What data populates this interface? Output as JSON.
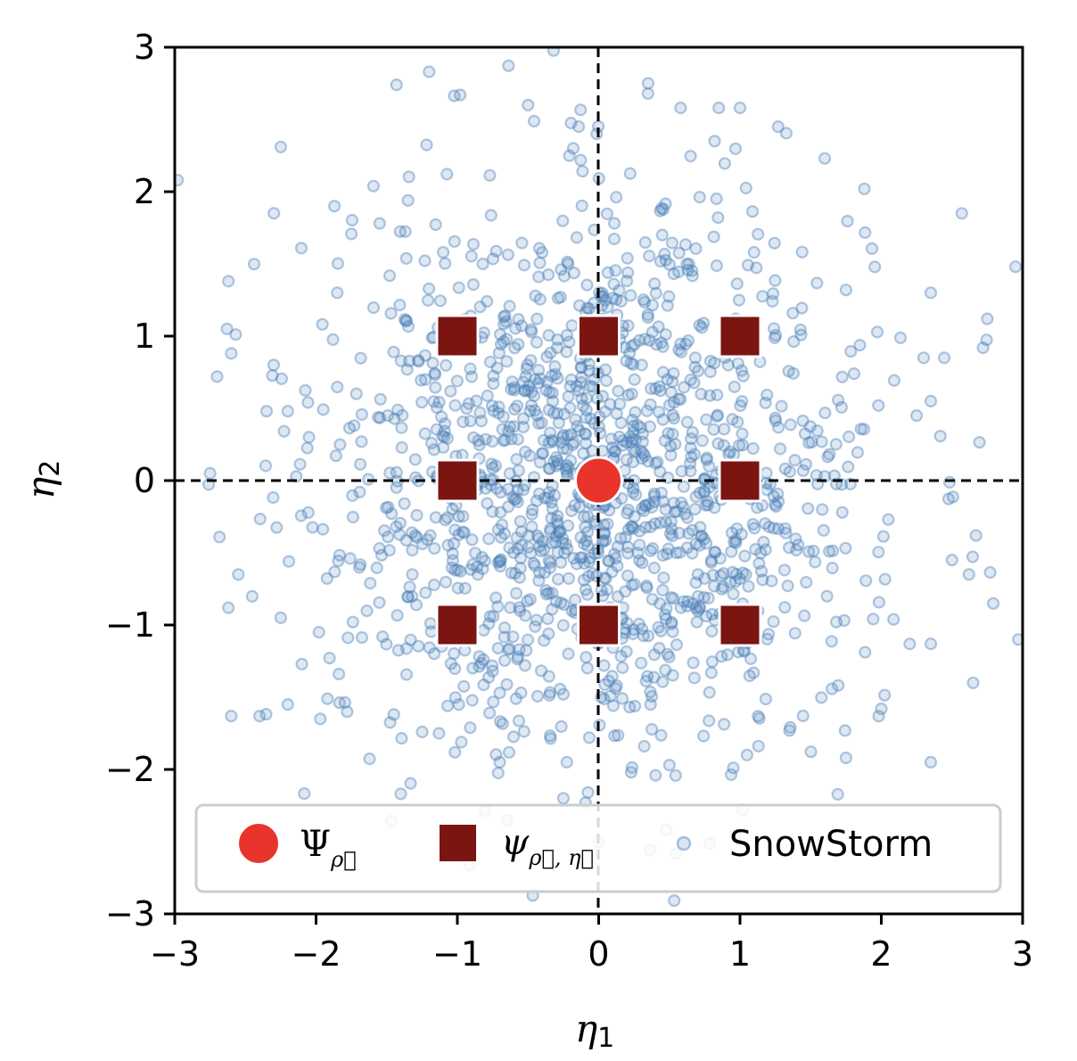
{
  "chart_data": {
    "type": "scatter",
    "xlabel": "η",
    "xlabel_sub": "1",
    "ylabel": "η",
    "ylabel_sub": "2",
    "xlim": [
      -3,
      3
    ],
    "ylim": [
      -3,
      3
    ],
    "xticks": [
      -3,
      -2,
      -1,
      0,
      1,
      2,
      3
    ],
    "yticks": [
      -3,
      -2,
      -1,
      0,
      1,
      2,
      3
    ],
    "xtick_labels": [
      "−3",
      "−2",
      "−1",
      "0",
      "1",
      "2",
      "3"
    ],
    "ytick_labels": [
      "−3",
      "−2",
      "−1",
      "0",
      "1",
      "2",
      "3"
    ],
    "grid": false,
    "reference_lines": [
      {
        "axis": "x",
        "value": 0,
        "style": "dashed"
      },
      {
        "axis": "y",
        "value": 0,
        "style": "dashed"
      }
    ],
    "legend_position": "lower-center",
    "series": [
      {
        "name": "SnowStorm",
        "marker": "circle",
        "style": "small open-ish translucent circles",
        "color": "#4a7fb8",
        "distribution": "standard bivariate normal, ~1500 samples",
        "points": [
          [
            -2.98,
            2.08
          ],
          [
            -2.25,
            2.31
          ],
          [
            -1.43,
            2.74
          ],
          [
            -1.2,
            2.83
          ],
          [
            -0.98,
            2.67
          ],
          [
            -0.5,
            2.6
          ],
          [
            -0.18,
            2.3
          ],
          [
            0.35,
            2.75
          ],
          [
            0.58,
            2.58
          ],
          [
            0.85,
            2.58
          ],
          [
            1.0,
            2.58
          ],
          [
            1.27,
            2.45
          ],
          [
            0.82,
            2.35
          ],
          [
            1.6,
            2.23
          ],
          [
            1.88,
            2.02
          ],
          [
            2.57,
            1.85
          ],
          [
            2.95,
            1.48
          ],
          [
            2.75,
            1.12
          ],
          [
            2.72,
            0.92
          ],
          [
            2.35,
            1.3
          ],
          [
            -2.7,
            0.72
          ],
          [
            -2.63,
            1.05
          ],
          [
            -2.6,
            0.88
          ],
          [
            -2.62,
            1.38
          ],
          [
            -1.87,
            1.9
          ],
          [
            -1.55,
            1.78
          ],
          [
            -2.75,
            0.05
          ],
          [
            -2.62,
            -0.88
          ],
          [
            -2.6,
            -1.63
          ],
          [
            -2.4,
            -1.63
          ],
          [
            -2.2,
            -1.55
          ],
          [
            -1.97,
            -1.65
          ],
          [
            -1.78,
            -1.6
          ],
          [
            -1.45,
            -1.62
          ],
          [
            -1.13,
            -1.75
          ],
          [
            -0.7,
            -1.95
          ],
          [
            -0.25,
            -2.2
          ],
          [
            0.23,
            -2.02
          ],
          [
            0.5,
            -1.97
          ],
          [
            1.05,
            -1.9
          ],
          [
            1.35,
            -1.73
          ],
          [
            1.75,
            -1.92
          ],
          [
            2.0,
            -1.58
          ],
          [
            2.35,
            -1.95
          ],
          [
            2.65,
            -1.4
          ],
          [
            2.35,
            -1.13
          ],
          [
            2.97,
            -1.1
          ],
          [
            2.62,
            -0.65
          ],
          [
            2.67,
            -0.38
          ],
          [
            2.5,
            -0.55
          ],
          [
            -2.55,
            -0.65
          ],
          [
            -2.25,
            -0.95
          ],
          [
            -1.98,
            -1.05
          ],
          [
            -2.2,
            0.48
          ],
          [
            -2.35,
            0.48
          ],
          [
            -2.05,
            0.3
          ],
          [
            2.25,
            0.45
          ],
          [
            2.35,
            0.55
          ],
          [
            2.05,
            -0.27
          ],
          [
            1.98,
            0.52
          ],
          [
            1.02,
            -2.28
          ],
          [
            -0.65,
            -2.35
          ],
          [
            1.75,
            1.32
          ],
          [
            -1.85,
            1.3
          ],
          [
            2.3,
            0.85
          ],
          [
            -2.3,
            0.8
          ],
          [
            1.1,
            1.58
          ],
          [
            -1.1,
            1.58
          ],
          [
            0.0,
            -2.5
          ],
          [
            0.48,
            -2.42
          ]
        ]
      },
      {
        "name": "ψ",
        "name_sub": "ρ⃗, η⃗",
        "marker": "square",
        "color": "#7a1512",
        "points": [
          [
            -1,
            1
          ],
          [
            0,
            1
          ],
          [
            1,
            1
          ],
          [
            -1,
            0
          ],
          [
            1,
            0
          ],
          [
            -1,
            -1
          ],
          [
            0,
            -1
          ],
          [
            1,
            -1
          ]
        ]
      },
      {
        "name": "Ψ",
        "name_sub": "ρ⃗",
        "marker": "circle",
        "color": "#e8342a",
        "points": [
          [
            0,
            0
          ]
        ]
      }
    ]
  }
}
